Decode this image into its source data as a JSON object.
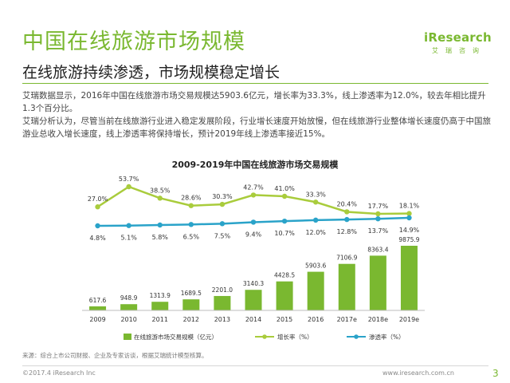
{
  "header": {
    "title": "中国在线旅游市场规模",
    "subtitle": "在线旅游持续渗透，市场规模稳定增长"
  },
  "logo": {
    "brand": "iResearch",
    "sub": "艾瑞咨询"
  },
  "body": {
    "para1": "艾瑞数据显示，2016年中国在线旅游市场交易规模达5903.6亿元，增长率为33.3%，线上渗透率为12.0%，较去年相比提升1.3个百分比。",
    "para2": "艾瑞分析认为，尽管当前在线旅游行业进入稳定发展阶段，行业增长速度开始放慢，但在线旅游行业整体增长速度仍高于中国旅游业总收入增长速度，线上渗透率将保持增长，预计2019年线上渗透率接近15%。"
  },
  "colors": {
    "bar": "#7ab830",
    "growth_line": "#a9cc3c",
    "penetration_line": "#2aa3c9",
    "accent": "#7ab830"
  },
  "chart_data": {
    "type": "bar",
    "title": "2009-2019年中国在线旅游市场交易规模",
    "categories": [
      "2009",
      "2010",
      "2011",
      "2012",
      "2013",
      "2014",
      "2015",
      "2016",
      "2017e",
      "2018e",
      "2019e"
    ],
    "series": [
      {
        "name": "在线旅游市场交易规模（亿元）",
        "kind": "bar",
        "values": [
          617.6,
          948.9,
          1313.9,
          1689.5,
          2201.0,
          3140.3,
          4428.5,
          5903.6,
          7106.9,
          8363.4,
          9875.9
        ],
        "labels": [
          "617.6",
          "948.9",
          "1313.9",
          "1689.5",
          "2201.0",
          "3140.3",
          "4428.5",
          "5903.6",
          "7106.9",
          "8363.4",
          "9875.9"
        ]
      },
      {
        "name": "增长率（%）",
        "kind": "line",
        "values": [
          27.0,
          53.7,
          38.5,
          28.6,
          30.3,
          42.7,
          41.0,
          33.3,
          20.4,
          17.7,
          18.1
        ],
        "labels": [
          "27.0%",
          "53.7%",
          "38.5%",
          "28.6%",
          "30.3%",
          "42.7%",
          "41.0%",
          "33.3%",
          "20.4%",
          "17.7%",
          "18.1%"
        ]
      },
      {
        "name": "渗透率（%）",
        "kind": "line",
        "values": [
          4.8,
          5.1,
          5.8,
          6.5,
          7.5,
          9.4,
          10.7,
          12.0,
          12.8,
          13.7,
          14.9
        ],
        "labels": [
          "4.8%",
          "5.1%",
          "5.8%",
          "6.5%",
          "7.5%",
          "9.4%",
          "10.7%",
          "12.0%",
          "12.8%",
          "13.7%",
          "14.9%"
        ]
      }
    ],
    "legend_position": "bottom"
  },
  "footer": {
    "source": "来源：综合上市公司财报、企业及专家访谈，根据艾瑞统计模型核算。",
    "copyright": "©2017.4 iResearch Inc",
    "site": "www.iresearch.com.cn",
    "page": "3"
  }
}
